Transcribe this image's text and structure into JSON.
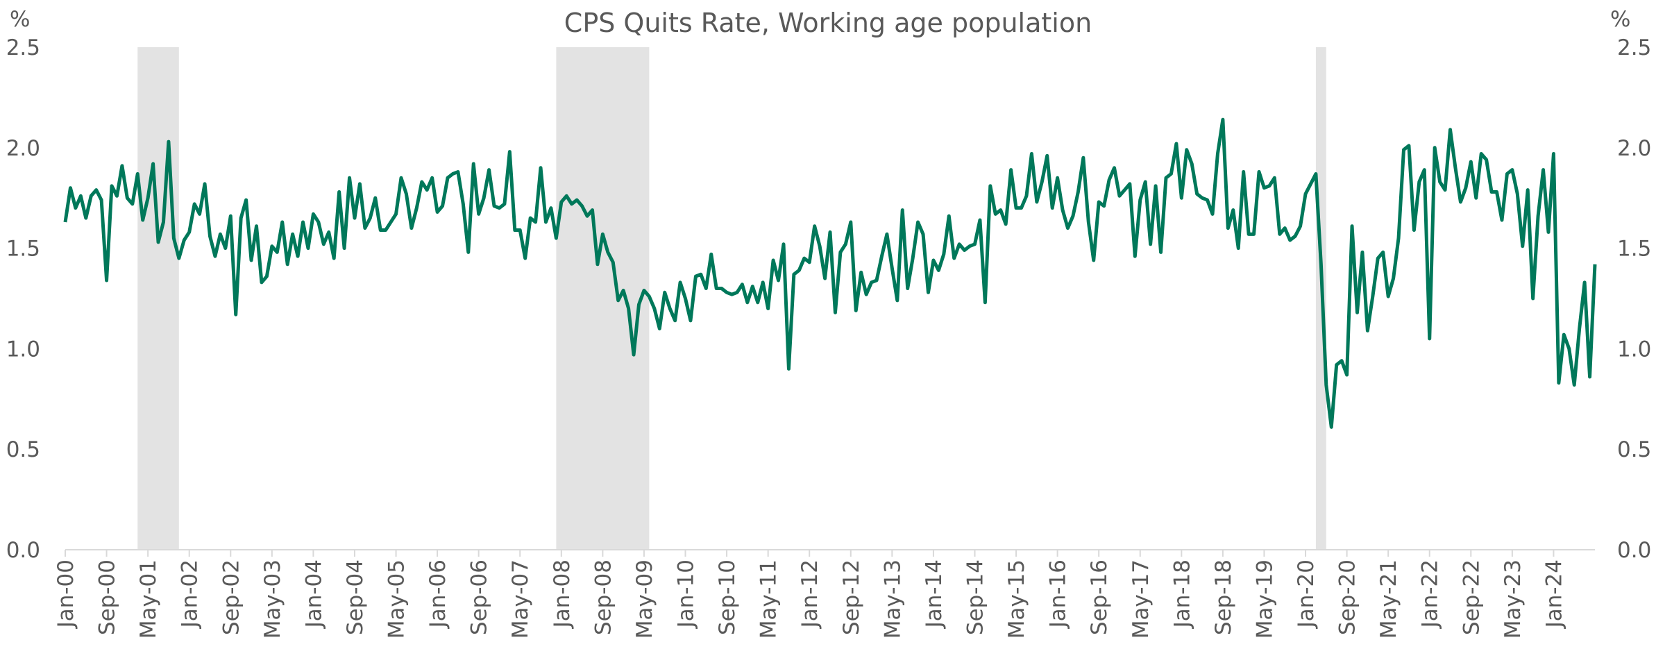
{
  "chart_data": {
    "type": "line",
    "title": "CPS Quits Rate, Working age population",
    "ylabel": "%",
    "y2label": "%",
    "color": "#00785a",
    "shade_color": "#e3e3e3",
    "ylim": [
      0,
      2.5
    ],
    "yticks": [
      {
        "value": 0,
        "label": "0.0"
      },
      0.5,
      {
        "value": 1,
        "label": "1.0"
      },
      1.5,
      {
        "value": 2,
        "label": "2.0"
      },
      2.5
    ],
    "y2lim": [
      0,
      2.5
    ],
    "y2ticks": [
      {
        "value": 0,
        "label": "0.0"
      },
      0.5,
      {
        "value": 1,
        "label": "1.0"
      },
      1.5,
      {
        "value": 2,
        "label": "2.0"
      },
      2.5
    ],
    "shaded_periods": [
      [
        14,
        22
      ],
      [
        95,
        113
      ],
      [
        242,
        244
      ]
    ],
    "categories": [
      "Jan-00",
      null,
      null,
      null,
      null,
      null,
      null,
      null,
      "Sep-00",
      null,
      null,
      null,
      null,
      null,
      null,
      null,
      "May-01",
      null,
      null,
      null,
      null,
      null,
      null,
      null,
      "Jan-02",
      null,
      null,
      null,
      null,
      null,
      null,
      null,
      "Sep-02",
      null,
      null,
      null,
      null,
      null,
      null,
      null,
      "May-03",
      null,
      null,
      null,
      null,
      null,
      null,
      null,
      "Jan-04",
      null,
      null,
      null,
      null,
      null,
      null,
      null,
      "Sep-04",
      null,
      null,
      null,
      null,
      null,
      null,
      null,
      "May-05",
      null,
      null,
      null,
      null,
      null,
      null,
      null,
      "Jan-06",
      null,
      null,
      null,
      null,
      null,
      null,
      null,
      "Sep-06",
      null,
      null,
      null,
      null,
      null,
      null,
      null,
      "May-07",
      null,
      null,
      null,
      null,
      null,
      null,
      null,
      "Jan-08",
      null,
      null,
      null,
      null,
      null,
      null,
      null,
      "Sep-08",
      null,
      null,
      null,
      null,
      null,
      null,
      null,
      "May-09",
      null,
      null,
      null,
      null,
      null,
      null,
      null,
      "Jan-10",
      null,
      null,
      null,
      null,
      null,
      null,
      null,
      "Sep-10",
      null,
      null,
      null,
      null,
      null,
      null,
      null,
      "May-11",
      null,
      null,
      null,
      null,
      null,
      null,
      null,
      "Jan-12",
      null,
      null,
      null,
      null,
      null,
      null,
      null,
      "Sep-12",
      null,
      null,
      null,
      null,
      null,
      null,
      null,
      "May-13",
      null,
      null,
      null,
      null,
      null,
      null,
      null,
      "Jan-14",
      null,
      null,
      null,
      null,
      null,
      null,
      null,
      "Sep-14",
      null,
      null,
      null,
      null,
      null,
      null,
      null,
      "May-15",
      null,
      null,
      null,
      null,
      null,
      null,
      null,
      "Jan-16",
      null,
      null,
      null,
      null,
      null,
      null,
      null,
      "Sep-16",
      null,
      null,
      null,
      null,
      null,
      null,
      null,
      "May-17",
      null,
      null,
      null,
      null,
      null,
      null,
      null,
      "Jan-18",
      null,
      null,
      null,
      null,
      null,
      null,
      null,
      "Sep-18",
      null,
      null,
      null,
      null,
      null,
      null,
      null,
      "May-19",
      null,
      null,
      null,
      null,
      null,
      null,
      null,
      "Jan-20",
      null,
      null,
      null,
      null,
      null,
      null,
      null,
      "Sep-20",
      null,
      null,
      null,
      null,
      null,
      null,
      null,
      "May-21",
      null,
      null,
      null,
      null,
      null,
      null,
      null,
      "Jan-22",
      null,
      null,
      null,
      null,
      null,
      null,
      null,
      "Sep-22",
      null,
      null,
      null,
      null,
      null,
      null,
      null,
      "May-23",
      null,
      null,
      null,
      null,
      null,
      null,
      null,
      "Jan-24",
      null,
      null,
      null,
      null,
      null,
      null,
      null,
      null
    ],
    "values": [
      1.63,
      1.8,
      1.7,
      1.76,
      1.65,
      1.76,
      1.79,
      1.74,
      1.34,
      1.81,
      1.76,
      1.91,
      1.75,
      1.72,
      1.87,
      1.64,
      1.75,
      1.92,
      1.53,
      1.63,
      2.03,
      1.55,
      1.45,
      1.54,
      1.58,
      1.72,
      1.67,
      1.82,
      1.56,
      1.46,
      1.57,
      1.5,
      1.66,
      1.17,
      1.65,
      1.74,
      1.44,
      1.61,
      1.33,
      1.36,
      1.51,
      1.48,
      1.63,
      1.42,
      1.57,
      1.46,
      1.63,
      1.5,
      1.67,
      1.63,
      1.52,
      1.58,
      1.45,
      1.78,
      1.5,
      1.85,
      1.65,
      1.82,
      1.6,
      1.65,
      1.75,
      1.59,
      1.59,
      1.63,
      1.67,
      1.85,
      1.77,
      1.6,
      1.7,
      1.83,
      1.79,
      1.85,
      1.68,
      1.71,
      1.85,
      1.87,
      1.88,
      1.72,
      1.48,
      1.92,
      1.67,
      1.75,
      1.89,
      1.71,
      1.7,
      1.72,
      1.98,
      1.59,
      1.59,
      1.45,
      1.65,
      1.63,
      1.9,
      1.63,
      1.7,
      1.55,
      1.73,
      1.76,
      1.72,
      1.74,
      1.71,
      1.66,
      1.69,
      1.42,
      1.57,
      1.48,
      1.43,
      1.24,
      1.29,
      1.2,
      0.97,
      1.22,
      1.29,
      1.26,
      1.2,
      1.1,
      1.28,
      1.2,
      1.14,
      1.33,
      1.25,
      1.14,
      1.36,
      1.37,
      1.3,
      1.47,
      1.3,
      1.3,
      1.28,
      1.27,
      1.28,
      1.32,
      1.23,
      1.31,
      1.23,
      1.33,
      1.2,
      1.44,
      1.34,
      1.52,
      0.9,
      1.37,
      1.39,
      1.45,
      1.43,
      1.61,
      1.51,
      1.35,
      1.58,
      1.18,
      1.48,
      1.52,
      1.63,
      1.19,
      1.38,
      1.27,
      1.33,
      1.34,
      1.46,
      1.57,
      1.4,
      1.24,
      1.69,
      1.3,
      1.45,
      1.63,
      1.57,
      1.28,
      1.44,
      1.39,
      1.47,
      1.66,
      1.45,
      1.52,
      1.49,
      1.51,
      1.52,
      1.64,
      1.23,
      1.81,
      1.67,
      1.69,
      1.62,
      1.89,
      1.7,
      1.7,
      1.76,
      1.97,
      1.73,
      1.83,
      1.96,
      1.7,
      1.85,
      1.69,
      1.6,
      1.66,
      1.78,
      1.95,
      1.63,
      1.44,
      1.73,
      1.71,
      1.84,
      1.9,
      1.76,
      1.79,
      1.82,
      1.46,
      1.74,
      1.83,
      1.52,
      1.81,
      1.48,
      1.85,
      1.87,
      2.02,
      1.75,
      1.99,
      1.92,
      1.77,
      1.75,
      1.74,
      1.67,
      1.97,
      2.14,
      1.6,
      1.69,
      1.5,
      1.88,
      1.57,
      1.57,
      1.88,
      1.8,
      1.81,
      1.85,
      1.57,
      1.6,
      1.54,
      1.56,
      1.61,
      1.77,
      1.82,
      1.87,
      1.42,
      0.82,
      0.61,
      0.92,
      0.94,
      0.87,
      1.61,
      1.18,
      1.48,
      1.09,
      1.26,
      1.45,
      1.48,
      1.26,
      1.35,
      1.55,
      1.99,
      2.01,
      1.59,
      1.83,
      1.89,
      1.05,
      2.0,
      1.83,
      1.79,
      2.09,
      1.9,
      1.73,
      1.8,
      1.93,
      1.75,
      1.97,
      1.94,
      1.78,
      1.78,
      1.64,
      1.87,
      1.89,
      1.77,
      1.51,
      1.79,
      1.25,
      1.66,
      1.89,
      1.58,
      1.97,
      0.83,
      1.07,
      1.0,
      0.82,
      1.1,
      1.33,
      0.86,
      1.42
    ]
  }
}
